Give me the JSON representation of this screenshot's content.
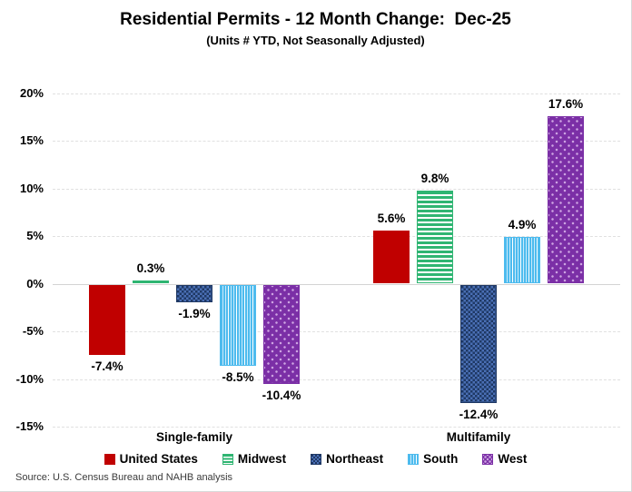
{
  "title": "Residential Permits - 12 Month Change:  Dec-25",
  "subtitle": "(Units # YTD, Not Seasonally Adjusted)",
  "source": "Source: U.S. Census Bureau and NAHB analysis",
  "chart_data": {
    "type": "bar",
    "categories": [
      "Single-family",
      "Multifamily"
    ],
    "series": [
      {
        "name": "United States",
        "pattern": "solid",
        "color": "#C00000",
        "color2": "#C00000",
        "values": [
          -7.4,
          5.6
        ]
      },
      {
        "name": "Midwest",
        "pattern": "h-stripes",
        "color": "#2FB572",
        "color2": "#FFFFFF",
        "values": [
          0.3,
          9.8
        ]
      },
      {
        "name": "Northeast",
        "pattern": "checker",
        "color": "#1F3864",
        "color2": "#4A6FB5",
        "values": [
          -1.9,
          -12.4
        ]
      },
      {
        "name": "South",
        "pattern": "v-stripes",
        "color": "#4DBBEE",
        "color2": "#C9EAFB",
        "values": [
          -8.5,
          4.9
        ]
      },
      {
        "name": "West",
        "pattern": "dots",
        "color": "#7B2FA6",
        "color2": "#CFA6E3",
        "values": [
          -10.4,
          17.6
        ]
      }
    ],
    "yticks": [
      20,
      15,
      10,
      5,
      0,
      -5,
      -10,
      -15
    ],
    "ytick_suffix": "%",
    "ylim": [
      -17,
      21
    ],
    "grid": true,
    "legend_position": "bottom",
    "value_label_decimals": 1
  }
}
